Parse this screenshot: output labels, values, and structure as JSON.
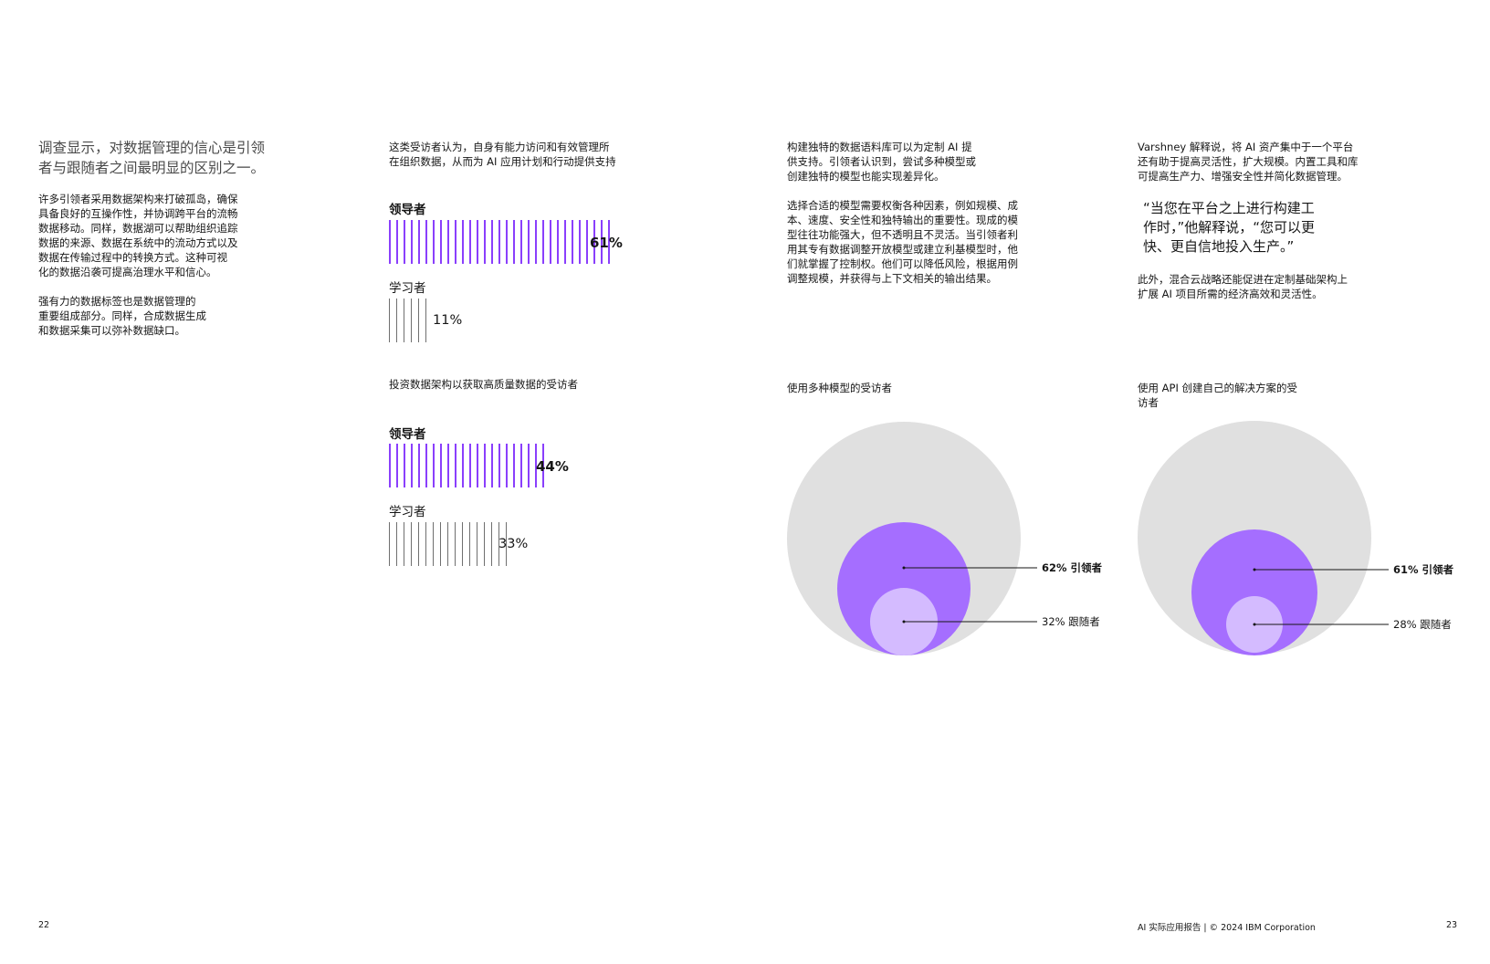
{
  "left_column": {
    "lead": "调查显示，对数据管理的信心是引领\n者与跟随者之间最明显的区别之一。",
    "para1": "许多引领者采用数据架构来打破孤岛，确保\n具备良好的互操作性，并协调跨平台的流畅\n数据移动。同样，数据湖可以帮助组织追踪\n数据的来源、数据在系统中的流动方式以及\n数据在传输过程中的转换方式。这种可视\n化的数据沿袭可提高治理水平和信心。",
    "para2": "强有力的数据标签也是数据管理的\n重要组成部分。同样，合成数据生成\n和数据采集可以弥补数据缺口。"
  },
  "col2": {
    "intro": "这类受访者认为，自身有能力访问和有效管理所\n在组织数据，从而为 AI 应用计划和行动提供支持",
    "chart1": {
      "leader_label": "领导者",
      "leader_value": "61%",
      "learner_label": "学习者",
      "learner_value": "11%"
    },
    "chart2_title": "投资数据架构以获取高质量数据的受访者",
    "chart2": {
      "leader_label": "领导者",
      "leader_value": "44%",
      "learner_label": "学习者",
      "learner_value": "33%"
    }
  },
  "col3": {
    "para1": "构建独特的数据语料库可以为定制 AI 提\n供支持。引领者认识到，尝试多种模型或\n创建独特的模型也能实现差异化。",
    "para2": "选择合适的模型需要权衡各种因素，例如规模、成\n本、速度、安全性和独特输出的重要性。现成的模\n型往往功能强大，但不透明且不灵活。当引领者利\n用其专有数据调整开放模型或建立利基模型时，他\n们就掌握了控制权。他们可以降低风险，根据用例\n调整规模，并获得与上下文相关的输出结果。",
    "chart_title": "使用多种模型的受访者",
    "leader_label": "62% 引领者",
    "follower_label": "32% 跟随者"
  },
  "col4": {
    "para1": "Varshney 解释说，将 AI 资产集中于一个平台\n还有助于提高灵活性，扩大规模。内置工具和库\n可提高生产力、增强安全性并简化数据管理。",
    "quote": "“当您在平台之上进行构建工\n 作时，”他解释说，“您可以更\n 快、更自信地投入生产。”",
    "para2": "此外，混合云战略还能促进在定制基础架构上\n扩展 AI 项目所需的经济高效和灵活性。",
    "chart_title": "使用 API 创建自己的解决方案的受\n访者",
    "leader_label": "61% 引领者",
    "follower_label": "28% 跟随者"
  },
  "footer": {
    "page_left": "22",
    "credit": "AI 实际应用报告 | © 2024 IBM Corporation",
    "page_right": "23"
  },
  "colors": {
    "accent_purple": "#8a3ffc",
    "circle_purple": "#a56eff",
    "circle_light": "#d4bbff",
    "circle_gray": "#e0e0e0"
  },
  "chart_data": [
    {
      "type": "bar",
      "categories": [
        "领导者",
        "学习者"
      ],
      "values": [
        61,
        11
      ]
    },
    {
      "type": "bar",
      "title": "投资数据架构以获取高质量数据的受访者",
      "categories": [
        "领导者",
        "学习者"
      ],
      "values": [
        44,
        33
      ]
    },
    {
      "type": "bubble",
      "title": "使用多种模型的受访者",
      "categories": [
        "引领者",
        "跟随者"
      ],
      "values": [
        62,
        32
      ]
    },
    {
      "type": "bubble",
      "title": "使用 API 创建自己的解决方案的受访者",
      "categories": [
        "引领者",
        "跟随者"
      ],
      "values": [
        61,
        28
      ]
    }
  ]
}
